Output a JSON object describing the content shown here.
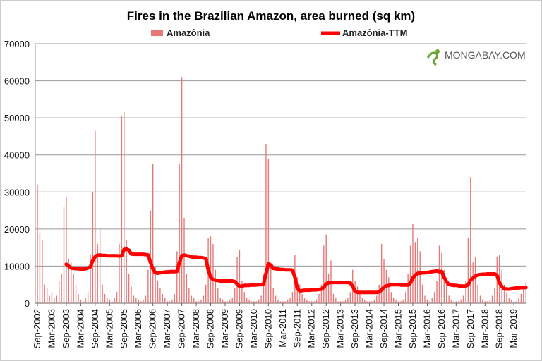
{
  "chart_data": {
    "type": "bar+line",
    "title": "Fires in the Brazilian Amazon, area burned (sq km)",
    "watermark": "MONGABAY.COM",
    "ylim": [
      0,
      70000
    ],
    "yticks": [
      "0",
      "10000",
      "20000",
      "30000",
      "40000",
      "50000",
      "60000",
      "70000"
    ],
    "grid": true,
    "legend_position": "top",
    "x_start": "Sep-2002",
    "x_end": "Aug-2019",
    "x_frequency": "monthly",
    "xticks": [
      "Sep-2002",
      "Mar-2003",
      "Sep-2003",
      "Mar-2004",
      "Sep-2004",
      "Mar-2005",
      "Sep-2005",
      "Mar-2006",
      "Sep-2006",
      "Mar-2007",
      "Sep-2007",
      "Mar-2008",
      "Sep-2008",
      "Mar-2009",
      "Sep-2009",
      "Mar-2010",
      "Sep-2010",
      "Mar-2011",
      "Sep-2011",
      "Mar-2012",
      "Sep-2012",
      "Mar-2013",
      "Sep-2013",
      "Mar-2014",
      "Sep-2014",
      "Mar-2015",
      "Sep-2015",
      "Mar-2016",
      "Sep-2016",
      "Mar-2017",
      "Sep-2017",
      "Mar-2018",
      "Sep-2018",
      "Mar-2019"
    ],
    "series": [
      {
        "name": "Amazônia",
        "type": "bar",
        "color": "#e87878",
        "values": [
          32000,
          19000,
          17000,
          5000,
          4000,
          2000,
          3000,
          1500,
          2000,
          6000,
          8000,
          26000,
          28500,
          12000,
          11000,
          8000,
          5000,
          2500,
          1000,
          500,
          1500,
          3000,
          13000,
          30000,
          46500,
          16000,
          20000,
          5000,
          2500,
          1500,
          1000,
          500,
          1500,
          3000,
          16000,
          50500,
          51500,
          17000,
          8000,
          4500,
          2000,
          1500,
          1000,
          500,
          1000,
          2000,
          9000,
          25000,
          37500,
          10000,
          6000,
          4000,
          2500,
          1500,
          500,
          500,
          1000,
          2500,
          14000,
          37500,
          61000,
          23000,
          8000,
          4000,
          2000,
          1500,
          500,
          500,
          1000,
          2000,
          5000,
          17500,
          18000,
          16000,
          9000,
          4000,
          1500,
          1000,
          500,
          500,
          1000,
          1500,
          4000,
          12500,
          14500,
          6000,
          3000,
          1500,
          1000,
          500,
          500,
          500,
          1000,
          2000,
          8000,
          43000,
          39000,
          10000,
          4000,
          2000,
          1000,
          500,
          500,
          500,
          1000,
          1500,
          3000,
          13000,
          7000,
          5000,
          2500,
          1500,
          1000,
          500,
          500,
          500,
          1000,
          2500,
          5000,
          15500,
          18500,
          8000,
          11500,
          2500,
          1500,
          500,
          500,
          500,
          1000,
          1500,
          3000,
          9000,
          6000,
          4500,
          2500,
          1500,
          1000,
          500,
          500,
          500,
          1000,
          2000,
          5000,
          16000,
          12000,
          9000,
          7000,
          3000,
          1500,
          1000,
          500,
          500,
          1000,
          3000,
          8000,
          15500,
          21500,
          16500,
          17500,
          14000,
          5000,
          2000,
          1000,
          500,
          1500,
          3000,
          6000,
          15500,
          13500,
          9000,
          5000,
          2000,
          1000,
          500,
          500,
          500,
          1000,
          2000,
          6000,
          17500,
          34000,
          11000,
          12500,
          5000,
          2000,
          1000,
          500,
          500,
          1000,
          2000,
          4000,
          12500,
          13000,
          9000,
          5000,
          3000,
          1500,
          1000,
          500,
          500,
          1500,
          2500,
          4500,
          5500
        ]
      },
      {
        "name": "Amazônia-TTM",
        "type": "line",
        "color": "#ff0000",
        "values": [
          null,
          null,
          null,
          null,
          null,
          null,
          null,
          null,
          null,
          null,
          null,
          null,
          10500,
          10000,
          9500,
          9400,
          9300,
          9300,
          9200,
          9200,
          9300,
          9500,
          9800,
          11500,
          12500,
          13000,
          13000,
          12900,
          12900,
          12800,
          12800,
          12800,
          12800,
          12800,
          12700,
          12800,
          14500,
          14600,
          14300,
          13300,
          13200,
          13200,
          13200,
          13200,
          13200,
          13100,
          13000,
          11000,
          9200,
          8200,
          8100,
          8200,
          8300,
          8400,
          8400,
          8500,
          8500,
          8500,
          8600,
          11000,
          12800,
          13000,
          12800,
          12700,
          12500,
          12400,
          12400,
          12300,
          12300,
          12200,
          12000,
          9000,
          7000,
          6400,
          6200,
          6100,
          6000,
          6000,
          6000,
          6000,
          6000,
          6000,
          5800,
          5200,
          4500,
          4600,
          4800,
          4800,
          4800,
          4900,
          4900,
          4900,
          5000,
          5000,
          5200,
          8000,
          10600,
          10300,
          9400,
          9300,
          9200,
          9100,
          9100,
          9000,
          9000,
          9000,
          8900,
          7000,
          4000,
          3300,
          3400,
          3500,
          3500,
          3500,
          3600,
          3600,
          3600,
          3700,
          3800,
          4300,
          5200,
          5500,
          5600,
          5600,
          5600,
          5600,
          5600,
          5600,
          5600,
          5600,
          5500,
          4500,
          3200,
          2900,
          2900,
          2900,
          2900,
          2900,
          2900,
          2900,
          2900,
          2900,
          3000,
          3600,
          4300,
          4700,
          4800,
          5000,
          5000,
          5000,
          5000,
          4900,
          4900,
          4900,
          4900,
          5500,
          6800,
          7600,
          8000,
          8100,
          8200,
          8200,
          8300,
          8400,
          8500,
          8600,
          8700,
          8500,
          8500,
          7000,
          5800,
          5000,
          4900,
          4800,
          4800,
          4700,
          4600,
          4600,
          4600,
          5000,
          6300,
          6800,
          7300,
          7600,
          7700,
          7800,
          7800,
          7900,
          7900,
          7900,
          7900,
          7500,
          5500,
          4500,
          3900,
          3800,
          3800,
          3900,
          4000,
          4100,
          4100,
          4200,
          4200,
          4200
        ]
      }
    ]
  }
}
